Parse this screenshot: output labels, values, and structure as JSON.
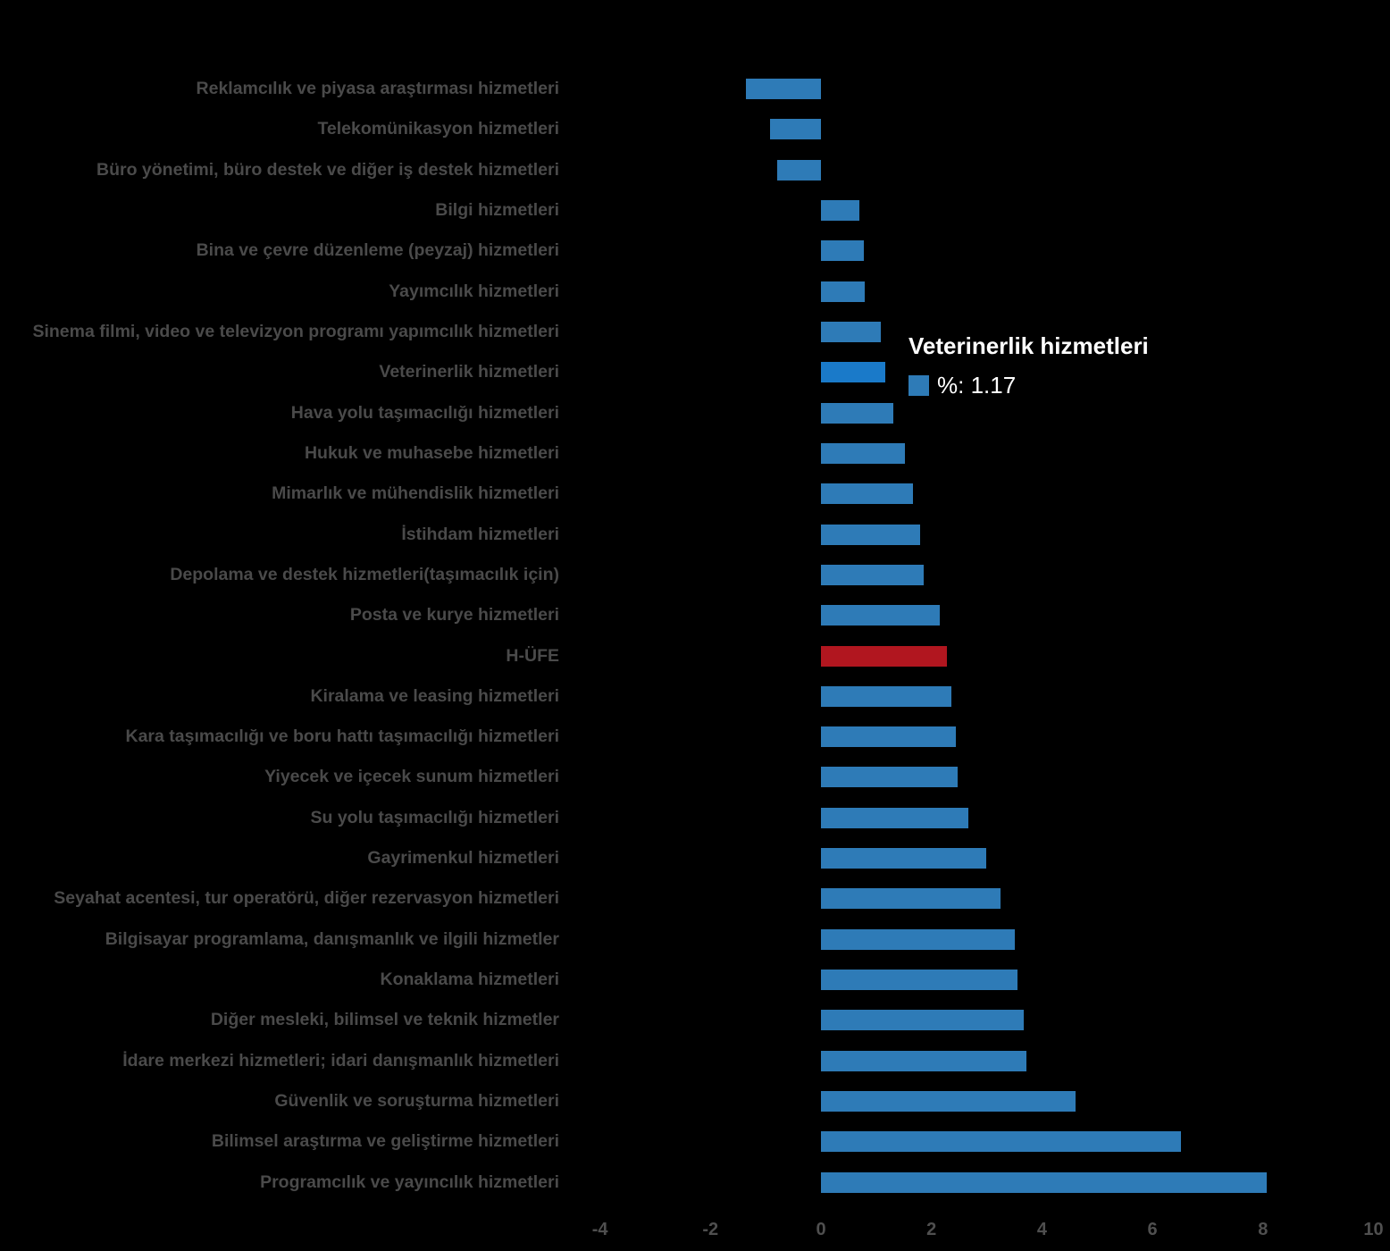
{
  "background_color": "#000000",
  "colors": {
    "bar": "#2e7bb7",
    "bar_highlight": "#1a7ac9",
    "bar_emphasis": "#b1161f",
    "label_text": "#4a4a4a",
    "axis_text": "#4f4f4f",
    "tooltip_text": "#ffffff"
  },
  "tooltip": {
    "title": "Veterinerlik hizmetleri",
    "value_label": "%: 1.17",
    "swatch_color": "#2e7bb7"
  },
  "chart_data": {
    "type": "bar",
    "orientation": "horizontal",
    "xlabel": "%",
    "ylabel": "",
    "xlim": [
      -4,
      10
    ],
    "x_ticks": [
      -4,
      -2,
      0,
      2,
      4,
      6,
      8,
      10
    ],
    "grid": false,
    "legend": false,
    "highlighted_category": "Veterinerlik hizmetleri",
    "emphasis_category": "H-ÜFE",
    "categories": [
      "Reklamcılık ve piyasa araştırması hizmetleri",
      "Telekomünikasyon hizmetleri",
      "Büro yönetimi, büro destek ve diğer iş destek hizmetleri",
      "Bilgi hizmetleri",
      "Bina ve çevre düzenleme (peyzaj) hizmetleri",
      "Yayımcılık hizmetleri",
      "Sinema filmi, video ve televizyon programı yapımcılık hizmetleri",
      "Veterinerlik hizmetleri",
      "Hava yolu taşımacılığı hizmetleri",
      "Hukuk ve muhasebe hizmetleri",
      "Mimarlık ve mühendislik hizmetleri",
      "İstihdam hizmetleri",
      "Depolama ve destek hizmetleri(taşımacılık için)",
      "Posta ve kurye hizmetleri",
      "H-ÜFE",
      "Kiralama ve leasing hizmetleri",
      "Kara taşımacılığı ve boru hattı taşımacılığı hizmetleri",
      "Yiyecek ve içecek sunum hizmetleri",
      "Su yolu taşımacılığı hizmetleri",
      "Gayrimenkul hizmetleri",
      "Seyahat acentesi, tur operatörü, diğer rezervasyon hizmetleri",
      "Bilgisayar programlama, danışmanlık ve ilgili hizmetler",
      "Konaklama hizmetleri",
      "Diğer mesleki, bilimsel ve teknik hizmetler",
      "İdare merkezi hizmetleri; idari danışmanlık hizmetleri",
      "Güvenlik ve soruşturma hizmetleri",
      "Bilimsel araştırma ve geliştirme hizmetleri",
      "Programcılık ve yayıncılık hizmetleri"
    ],
    "values": [
      -1.36,
      -0.92,
      -0.79,
      0.7,
      0.77,
      0.79,
      1.08,
      1.17,
      1.31,
      1.52,
      1.67,
      1.79,
      1.86,
      2.15,
      2.28,
      2.36,
      2.44,
      2.48,
      2.66,
      2.99,
      3.25,
      3.51,
      3.56,
      3.67,
      3.72,
      4.61,
      6.52,
      8.07
    ]
  }
}
